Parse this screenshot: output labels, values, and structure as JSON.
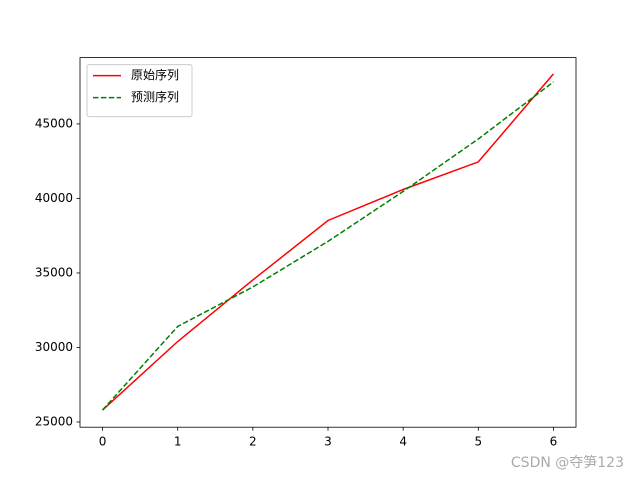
{
  "chart_data": {
    "type": "line",
    "x": [
      0,
      1,
      2,
      3,
      4,
      5,
      6
    ],
    "series": [
      {
        "name": "原始序列",
        "color": "#ff0000",
        "dash": false,
        "values": [
          25800,
          30400,
          34530,
          38520,
          40600,
          42450,
          48355
        ]
      },
      {
        "name": "预测序列",
        "color": "#008000",
        "dash": true,
        "values": [
          25800,
          31410,
          34060,
          37120,
          40470,
          43990,
          47820
        ]
      }
    ],
    "xlim": [
      -0.3,
      6.3
    ],
    "xticks": [
      0,
      1,
      2,
      3,
      4,
      5,
      6
    ],
    "ylim": [
      24650,
      49450
    ],
    "yticks": [
      25000,
      30000,
      35000,
      40000,
      45000
    ],
    "legend": "upper left",
    "grid": false
  },
  "watermark": "CSDN @夺笋123"
}
